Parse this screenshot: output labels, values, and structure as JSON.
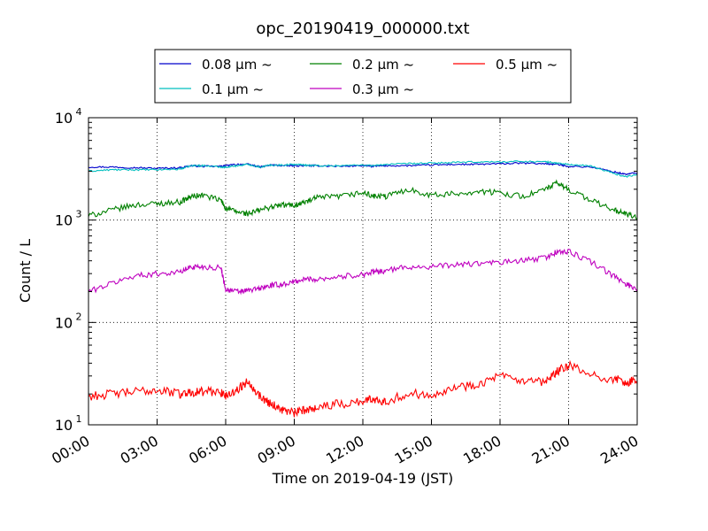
{
  "chart_data": {
    "type": "line",
    "title": "opc_20190419_000000.txt",
    "xlabel": "Time on 2019-04-19 (JST)",
    "ylabel": "Count / L",
    "yscale": "log",
    "ylim": [
      10,
      10000
    ],
    "xlim": [
      0,
      24
    ],
    "grid": true,
    "legend_position": "top",
    "x_ticks": [
      {
        "value": 0,
        "label": "00:00"
      },
      {
        "value": 3,
        "label": "03:00"
      },
      {
        "value": 6,
        "label": "06:00"
      },
      {
        "value": 9,
        "label": "09:00"
      },
      {
        "value": 12,
        "label": "12:00"
      },
      {
        "value": 15,
        "label": "15:00"
      },
      {
        "value": 18,
        "label": "18:00"
      },
      {
        "value": 21,
        "label": "21:00"
      },
      {
        "value": 24,
        "label": "24:00"
      }
    ],
    "y_ticks": [
      {
        "value": 10,
        "base": "10",
        "exp": "1"
      },
      {
        "value": 100,
        "base": "10",
        "exp": "2"
      },
      {
        "value": 1000,
        "base": "10",
        "exp": "3"
      },
      {
        "value": 10000,
        "base": "10",
        "exp": "4"
      }
    ],
    "x": [
      0,
      1,
      2,
      3,
      4,
      4.5,
      5,
      5.8,
      6,
      6.5,
      7,
      7.5,
      8,
      8.5,
      9,
      9.5,
      10,
      11,
      12,
      12.5,
      13,
      14,
      15,
      16,
      17,
      18,
      19,
      20,
      20.5,
      21,
      22,
      23,
      23.5,
      24
    ],
    "series": [
      {
        "name": "0.08 μm ~",
        "color": "#0000cc",
        "values": [
          3300,
          3300,
          3250,
          3200,
          3250,
          3400,
          3350,
          3350,
          3400,
          3500,
          3500,
          3300,
          3450,
          3400,
          3400,
          3400,
          3400,
          3350,
          3400,
          3350,
          3400,
          3400,
          3450,
          3500,
          3500,
          3550,
          3600,
          3550,
          3500,
          3350,
          3300,
          2950,
          2800,
          2900
        ]
      },
      {
        "name": "0.1 μm ~",
        "color": "#00bfbf",
        "values": [
          3000,
          3100,
          3100,
          3100,
          3150,
          3400,
          3400,
          3300,
          3300,
          3400,
          3500,
          3300,
          3450,
          3450,
          3500,
          3450,
          3400,
          3400,
          3450,
          3400,
          3500,
          3550,
          3600,
          3650,
          3700,
          3700,
          3750,
          3700,
          3600,
          3500,
          3350,
          2850,
          2650,
          2800
        ]
      },
      {
        "name": "0.2 μm ~",
        "color": "#008000",
        "values": [
          1100,
          1250,
          1400,
          1450,
          1500,
          1700,
          1750,
          1550,
          1300,
          1200,
          1150,
          1250,
          1350,
          1400,
          1400,
          1500,
          1650,
          1700,
          1850,
          1700,
          1700,
          2000,
          1750,
          1800,
          1900,
          1850,
          1700,
          2000,
          2300,
          2000,
          1550,
          1250,
          1150,
          1050
        ]
      },
      {
        "name": "0.3 μm ~",
        "color": "#bf00bf",
        "values": [
          200,
          240,
          285,
          300,
          310,
          350,
          350,
          340,
          210,
          200,
          205,
          215,
          230,
          235,
          250,
          265,
          265,
          280,
          295,
          310,
          320,
          350,
          350,
          365,
          375,
          385,
          400,
          430,
          490,
          490,
          390,
          280,
          240,
          210
        ]
      },
      {
        "name": "0.5 μm ~",
        "color": "#ff0000",
        "values": [
          19,
          20,
          21,
          22,
          20,
          21,
          21,
          21,
          19,
          22,
          27,
          19,
          16,
          14,
          13,
          14,
          15,
          16,
          17,
          18,
          17,
          20,
          20,
          23,
          25,
          30,
          26,
          26,
          33,
          38,
          30,
          28,
          26,
          27
        ]
      }
    ]
  }
}
